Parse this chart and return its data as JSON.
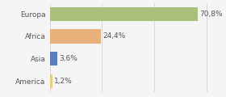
{
  "categories": [
    "Europa",
    "Africa",
    "Asia",
    "America"
  ],
  "values": [
    70.8,
    24.4,
    3.6,
    1.2
  ],
  "labels": [
    "70,8%",
    "24,4%",
    "3,6%",
    "1,2%"
  ],
  "bar_colors": [
    "#a8c07a",
    "#e8b07a",
    "#5b7fbd",
    "#e8d07a"
  ],
  "background_color": "#f5f5f5",
  "xlim": [
    0,
    82
  ],
  "bar_height": 0.62,
  "label_fontsize": 6.5,
  "tick_fontsize": 6.5,
  "grid_ticks": [
    0,
    25,
    50,
    75
  ],
  "grid_color": "#cccccc"
}
